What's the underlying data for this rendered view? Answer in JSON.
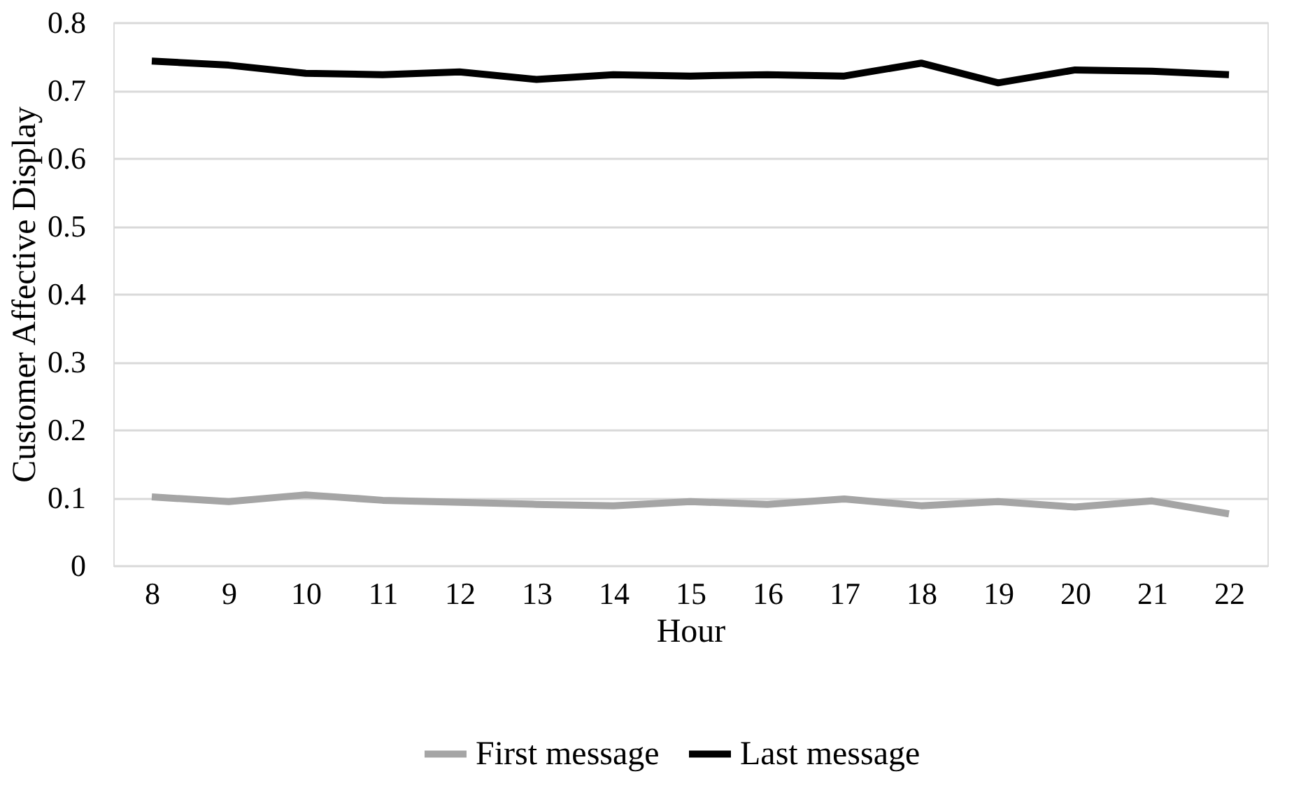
{
  "chart_data": {
    "type": "line",
    "xlabel": "Hour",
    "ylabel": "Customer Affective Display",
    "categories": [
      "8",
      "9",
      "10",
      "11",
      "12",
      "13",
      "14",
      "15",
      "16",
      "17",
      "18",
      "19",
      "20",
      "21",
      "22"
    ],
    "series": [
      {
        "name": "First message",
        "color": "#a5a5a5",
        "values": [
          0.101,
          0.094,
          0.104,
          0.096,
          0.093,
          0.09,
          0.088,
          0.094,
          0.09,
          0.098,
          0.088,
          0.094,
          0.086,
          0.095,
          0.076
        ]
      },
      {
        "name": "Last message",
        "color": "#000000",
        "values": [
          0.743,
          0.737,
          0.725,
          0.723,
          0.727,
          0.716,
          0.723,
          0.721,
          0.723,
          0.721,
          0.74,
          0.711,
          0.73,
          0.728,
          0.723
        ]
      }
    ],
    "ylim": [
      0,
      0.8
    ],
    "yticks": [
      0,
      0.1,
      0.2,
      0.3,
      0.4,
      0.5,
      0.6,
      0.7,
      0.8
    ],
    "grid": "y",
    "legend": "bottom",
    "marker": "none",
    "line_style": "solid"
  }
}
